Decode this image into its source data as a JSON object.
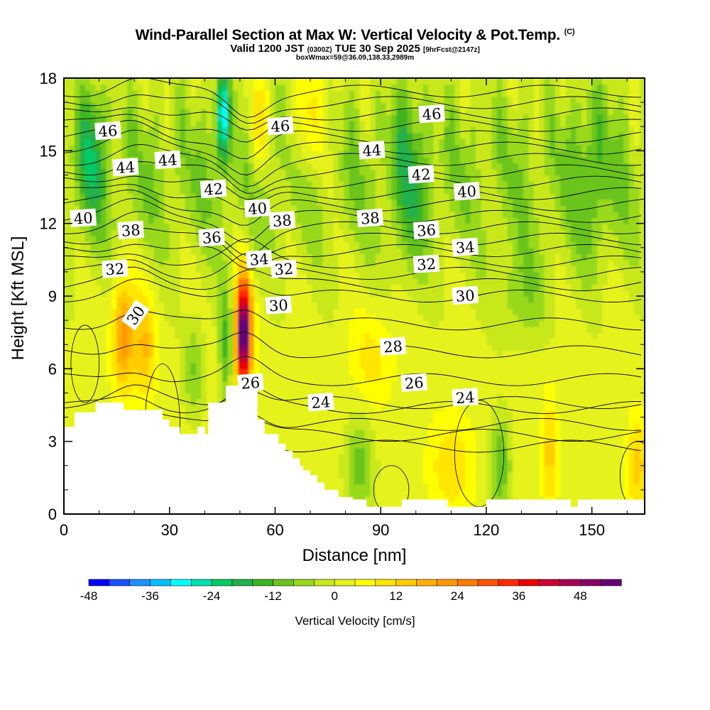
{
  "title": {
    "main": "Wind-Parallel Section at Max W: Vertical Velocity & Pot.Temp.",
    "main_suffix": "(C)",
    "valid_prefix": "Valid 1200 JST",
    "valid_z": "(0300Z)",
    "valid_date": "TUE 30 Sep 2025",
    "forecast": "[9hrFcst@2147z]",
    "box": "boxWmax=59@36.09,138.33,2989m"
  },
  "chart_data": {
    "type": "heatmap",
    "xlabel": "Distance [nm]",
    "ylabel": "Height [Kft MSL]",
    "xlim": [
      0,
      165
    ],
    "ylim": [
      0,
      18
    ],
    "x_ticks": [
      0,
      30,
      60,
      90,
      120,
      150
    ],
    "y_ticks": [
      0,
      3,
      6,
      9,
      12,
      15,
      18
    ],
    "colorbar": {
      "label": "Vertical Velocity [cm/s]",
      "min": -48,
      "max": 54,
      "step": 4,
      "tick_values": [
        -48,
        -36,
        -24,
        -12,
        0,
        12,
        24,
        36,
        48
      ],
      "tick_labels": [
        "-48",
        "-36",
        "-24",
        "-12",
        "0",
        "12",
        "24",
        "36",
        "48"
      ],
      "colors": [
        "#0000ff",
        "#1a50ff",
        "#1e90ff",
        "#00bfff",
        "#00ffff",
        "#00e0b0",
        "#00cc66",
        "#22b14c",
        "#3cb521",
        "#6ac41b",
        "#99d91a",
        "#c8e81a",
        "#e6f21a",
        "#ffff00",
        "#ffe600",
        "#ffcc00",
        "#ffb000",
        "#ff9900",
        "#ff7a00",
        "#ff5500",
        "#ff2a00",
        "#ee0000",
        "#cc0033",
        "#aa0055",
        "#880066",
        "#660077"
      ]
    },
    "w_features": [
      {
        "x": 51,
        "y": 7.5,
        "value": 59,
        "note": "max updraft"
      },
      {
        "x": 17,
        "y": 7.5,
        "value": 22
      },
      {
        "x": 23,
        "y": 7.0,
        "value": 14
      },
      {
        "x": 46,
        "y": 7.0,
        "value": -14
      },
      {
        "x": 37,
        "y": 6.0,
        "value": -10
      },
      {
        "x": 45,
        "y": 16.5,
        "value": -30
      },
      {
        "x": 55,
        "y": 16.0,
        "value": 16
      },
      {
        "x": 68,
        "y": 16.0,
        "value": 12
      },
      {
        "x": 8,
        "y": 15.0,
        "value": -14
      },
      {
        "x": 124,
        "y": 2.0,
        "value": -14
      },
      {
        "x": 84,
        "y": 2.0,
        "value": -12
      },
      {
        "x": 110,
        "y": 2.0,
        "value": 10
      },
      {
        "x": 138,
        "y": 2.5,
        "value": 12
      },
      {
        "x": 163,
        "y": 2.0,
        "value": 12
      }
    ],
    "terrain_kft": {
      "x": [
        0,
        3,
        3,
        9,
        9,
        17,
        17,
        28,
        28,
        30,
        30,
        33,
        33,
        38,
        38,
        40,
        40,
        41,
        41,
        46,
        46,
        55,
        55,
        57,
        57,
        61,
        61,
        63,
        63,
        65,
        65,
        67,
        67,
        68,
        68,
        70,
        70,
        72,
        72,
        74,
        74,
        78,
        78,
        82,
        82,
        86,
        86,
        96,
        96,
        109,
        109,
        120,
        120,
        144,
        144,
        146,
        146,
        165
      ],
      "y": [
        3.6,
        3.6,
        4.2,
        4.2,
        4.6,
        4.6,
        4.3,
        4.3,
        3.9,
        3.9,
        3.6,
        3.6,
        3.3,
        3.3,
        3.6,
        3.6,
        3.3,
        3.3,
        4.6,
        4.6,
        5.3,
        5.3,
        3.9,
        3.9,
        3.3,
        3.3,
        2.9,
        2.9,
        2.6,
        2.6,
        2.3,
        2.3,
        2.0,
        2.0,
        1.8,
        1.8,
        1.6,
        1.6,
        1.3,
        1.3,
        1.0,
        1.0,
        0.7,
        0.7,
        0.6,
        0.6,
        0.3,
        0.3,
        0.6,
        0.6,
        0.3,
        0.3,
        0.6,
        0.6,
        0.3,
        0.3,
        0.6,
        0.6
      ]
    },
    "theta_contour_labels": [
      {
        "text": "46",
        "x": 12.5,
        "y": 15.8
      },
      {
        "text": "46",
        "x": 61.5,
        "y": 16.0
      },
      {
        "text": "46",
        "x": 104.5,
        "y": 16.5
      },
      {
        "text": "44",
        "x": 17.5,
        "y": 14.3
      },
      {
        "text": "44",
        "x": 29.5,
        "y": 14.6
      },
      {
        "text": "44",
        "x": 87.5,
        "y": 15.0
      },
      {
        "text": "42",
        "x": 42.5,
        "y": 13.4
      },
      {
        "text": "42",
        "x": 101.5,
        "y": 14.0
      },
      {
        "text": "40",
        "x": 5.5,
        "y": 12.2
      },
      {
        "text": "40",
        "x": 55.0,
        "y": 12.6
      },
      {
        "text": "40",
        "x": 114.5,
        "y": 13.3
      },
      {
        "text": "38",
        "x": 19.0,
        "y": 11.7
      },
      {
        "text": "38",
        "x": 62.0,
        "y": 12.1
      },
      {
        "text": "38",
        "x": 87.0,
        "y": 12.2
      },
      {
        "text": "36",
        "x": 42.0,
        "y": 11.4
      },
      {
        "text": "36",
        "x": 103.0,
        "y": 11.7
      },
      {
        "text": "34",
        "x": 55.5,
        "y": 10.5
      },
      {
        "text": "34",
        "x": 114.0,
        "y": 11.0
      },
      {
        "text": "32",
        "x": 14.5,
        "y": 10.1
      },
      {
        "text": "32",
        "x": 62.5,
        "y": 10.1
      },
      {
        "text": "32",
        "x": 103.0,
        "y": 10.3
      },
      {
        "text": "30",
        "x": 20.5,
        "y": 8.2,
        "angle": -55
      },
      {
        "text": "30",
        "x": 61.0,
        "y": 8.6
      },
      {
        "text": "30",
        "x": 114.0,
        "y": 9.0
      },
      {
        "text": "28",
        "x": 93.5,
        "y": 6.9
      },
      {
        "text": "26",
        "x": 53.0,
        "y": 5.4
      },
      {
        "text": "26",
        "x": 99.5,
        "y": 5.4
      },
      {
        "text": "24",
        "x": 73.0,
        "y": 4.6
      },
      {
        "text": "24",
        "x": 114.0,
        "y": 4.8
      }
    ],
    "theta_range_C": [
      22,
      48
    ],
    "theta_interval_C": 1
  }
}
